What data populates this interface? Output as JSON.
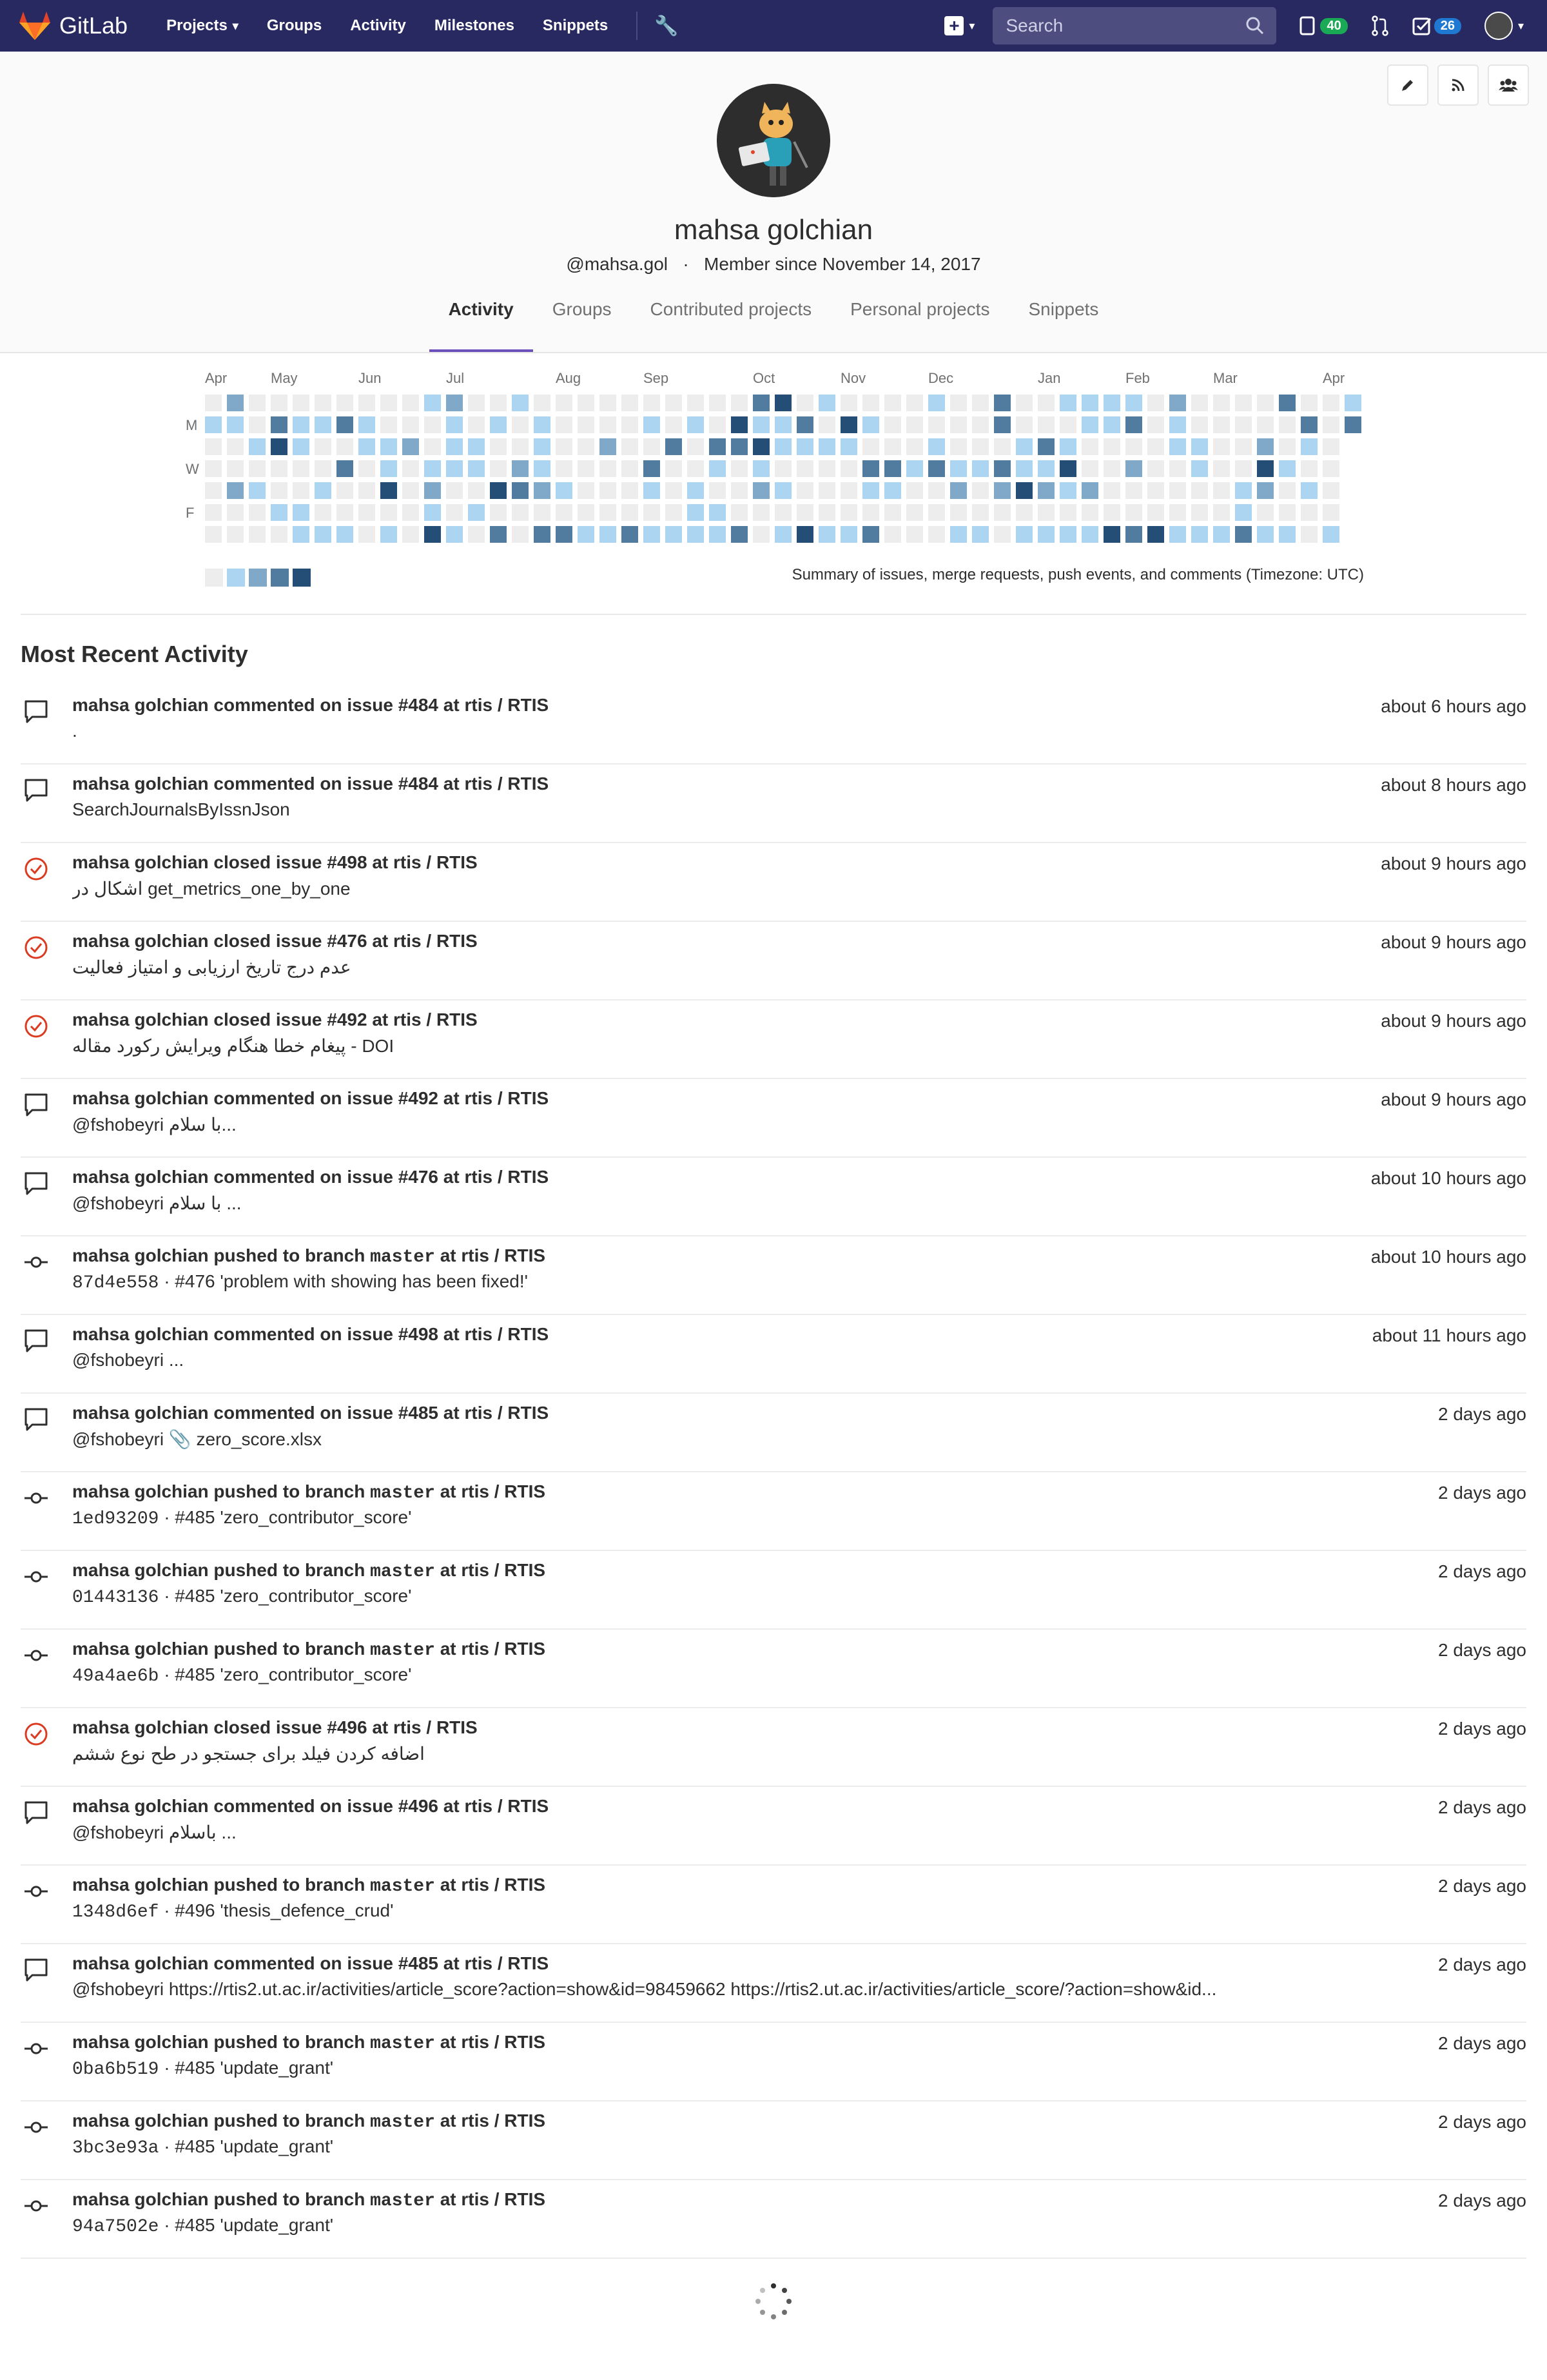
{
  "navbar": {
    "brand": "GitLab",
    "links": [
      "Projects",
      "Groups",
      "Activity",
      "Milestones",
      "Snippets"
    ],
    "search_placeholder": "Search",
    "merge_requests_badge": "40",
    "todos_badge": "26"
  },
  "profile": {
    "name": "mahsa golchian",
    "username": "@mahsa.gol",
    "member_since": "Member since November 14, 2017",
    "tabs": [
      "Activity",
      "Groups",
      "Contributed projects",
      "Personal projects",
      "Snippets"
    ],
    "active_tab": "Activity"
  },
  "calendar": {
    "months": [
      "Apr",
      "May",
      "Jun",
      "Jul",
      "Aug",
      "Sep",
      "Oct",
      "Nov",
      "Dec",
      "Jan",
      "Feb",
      "Mar",
      "Apr"
    ],
    "day_labels": [
      "M",
      "W",
      "F"
    ],
    "summary": "Summary of issues, merge requests, push events, and comments (Timezone: UTC)",
    "colors": [
      "#ededed",
      "#acd5f2",
      "#7fa8c9",
      "#527ba0",
      "#254e77"
    ]
  },
  "section_title": "Most Recent Activity",
  "events": [
    {
      "type": "comment",
      "author": "mahsa golchian",
      "action": "commented on",
      "target": "issue #484",
      "at": "at",
      "project": "rtis / RTIS",
      "body": ".",
      "time": "about 6 hours ago"
    },
    {
      "type": "comment",
      "author": "mahsa golchian",
      "action": "commented on",
      "target": "issue #484",
      "at": "at",
      "project": "rtis / RTIS",
      "body": "SearchJournalsByIssnJson",
      "time": "about 8 hours ago"
    },
    {
      "type": "closed",
      "author": "mahsa golchian",
      "action": "closed",
      "target": "issue #498",
      "at": "at",
      "project": "rtis / RTIS",
      "body": "اشکال در get_metrics_one_by_one",
      "time": "about 9 hours ago"
    },
    {
      "type": "closed",
      "author": "mahsa golchian",
      "action": "closed",
      "target": "issue #476",
      "at": "at",
      "project": "rtis / RTIS",
      "body": "عدم درج تاریخ ارزیابی و امتیاز فعالیت",
      "time": "about 9 hours ago"
    },
    {
      "type": "closed",
      "author": "mahsa golchian",
      "action": "closed",
      "target": "issue #492",
      "at": "at",
      "project": "rtis / RTIS",
      "body": "پیغام خطا هنگام ویرایش رکورد مقاله - DOI",
      "time": "about 9 hours ago"
    },
    {
      "type": "comment",
      "author": "mahsa golchian",
      "action": "commented on",
      "target": "issue #492",
      "at": "at",
      "project": "rtis / RTIS",
      "body": "@fshobeyri  با سلام...",
      "time": "about 9 hours ago"
    },
    {
      "type": "comment",
      "author": "mahsa golchian",
      "action": "commented on",
      "target": "issue #476",
      "at": "at",
      "project": "rtis / RTIS",
      "body": "@fshobeyri  با سلام ...",
      "time": "about 10 hours ago"
    },
    {
      "type": "push",
      "author": "mahsa golchian",
      "action": "pushed to branch",
      "target": "master",
      "at": "at",
      "project": "rtis / RTIS",
      "sha": "87d4e558",
      "body": "· #476 'problem with showing has been fixed!'",
      "time": "about 10 hours ago"
    },
    {
      "type": "comment",
      "author": "mahsa golchian",
      "action": "commented on",
      "target": "issue #498",
      "at": "at",
      "project": "rtis / RTIS",
      "body": "@fshobeyri  ...",
      "time": "about 11 hours ago"
    },
    {
      "type": "comment",
      "author": "mahsa golchian",
      "action": "commented on",
      "target": "issue #485",
      "at": "at",
      "project": "rtis / RTIS",
      "body": "@fshobeyri 📎 zero_score.xlsx",
      "time": "2 days ago"
    },
    {
      "type": "push",
      "author": "mahsa golchian",
      "action": "pushed to branch",
      "target": "master",
      "at": "at",
      "project": "rtis / RTIS",
      "sha": "1ed93209",
      "body": "· #485 'zero_contributor_score'",
      "time": "2 days ago"
    },
    {
      "type": "push",
      "author": "mahsa golchian",
      "action": "pushed to branch",
      "target": "master",
      "at": "at",
      "project": "rtis / RTIS",
      "sha": "01443136",
      "body": "· #485 'zero_contributor_score'",
      "time": "2 days ago"
    },
    {
      "type": "push",
      "author": "mahsa golchian",
      "action": "pushed to branch",
      "target": "master",
      "at": "at",
      "project": "rtis / RTIS",
      "sha": "49a4ae6b",
      "body": "· #485 'zero_contributor_score'",
      "time": "2 days ago"
    },
    {
      "type": "closed",
      "author": "mahsa golchian",
      "action": "closed",
      "target": "issue #496",
      "at": "at",
      "project": "rtis / RTIS",
      "body": "اضافه کردن فیلد برای جستجو در طح نوع ششم",
      "time": "2 days ago"
    },
    {
      "type": "comment",
      "author": "mahsa golchian",
      "action": "commented on",
      "target": "issue #496",
      "at": "at",
      "project": "rtis / RTIS",
      "body": "@fshobeyri  باسلام ...",
      "time": "2 days ago"
    },
    {
      "type": "push",
      "author": "mahsa golchian",
      "action": "pushed to branch",
      "target": "master",
      "at": "at",
      "project": "rtis / RTIS",
      "sha": "1348d6ef",
      "body": "· #496 'thesis_defence_crud'",
      "time": "2 days ago"
    },
    {
      "type": "comment",
      "author": "mahsa golchian",
      "action": "commented on",
      "target": "issue #485",
      "at": "at",
      "project": "rtis / RTIS",
      "body": "@fshobeyri  https://rtis2.ut.ac.ir/activities/article_score?action=show&id=98459662 https://rtis2.ut.ac.ir/activities/article_score/?action=show&id...",
      "time": "2 days ago"
    },
    {
      "type": "push",
      "author": "mahsa golchian",
      "action": "pushed to branch",
      "target": "master",
      "at": "at",
      "project": "rtis / RTIS",
      "sha": "0ba6b519",
      "body": "· #485 'update_grant'",
      "time": "2 days ago"
    },
    {
      "type": "push",
      "author": "mahsa golchian",
      "action": "pushed to branch",
      "target": "master",
      "at": "at",
      "project": "rtis / RTIS",
      "sha": "3bc3e93a",
      "body": "· #485 'update_grant'",
      "time": "2 days ago"
    },
    {
      "type": "push",
      "author": "mahsa golchian",
      "action": "pushed to branch",
      "target": "master",
      "at": "at",
      "project": "rtis / RTIS",
      "sha": "94a7502e",
      "body": "· #485 'update_grant'",
      "time": "2 days ago"
    }
  ]
}
